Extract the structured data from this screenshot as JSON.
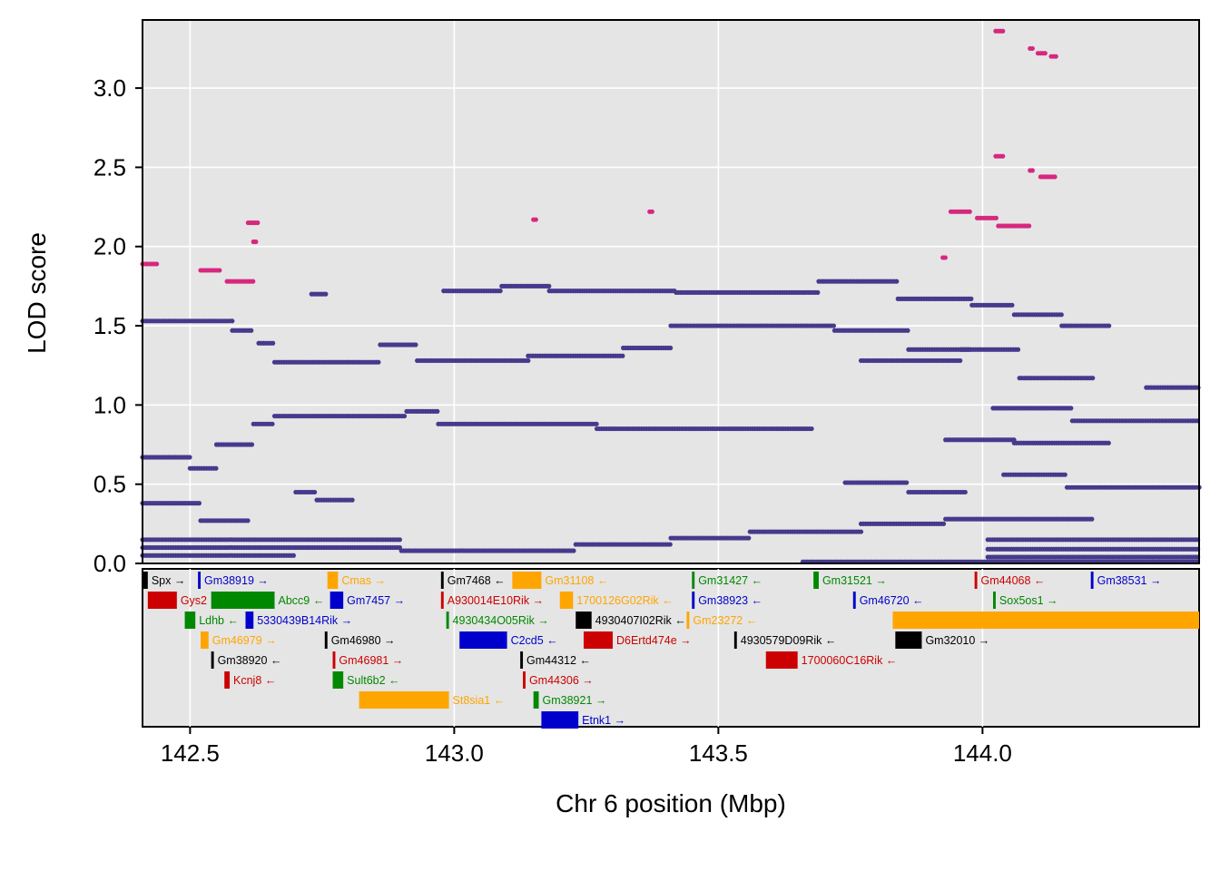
{
  "chart_data": {
    "type": "scatter",
    "xlabel": "Chr 6 position (Mbp)",
    "ylabel": "LOD score",
    "xlim": [
      142.41,
      144.41
    ],
    "ylim": [
      0,
      3.43
    ],
    "x_ticks": [
      142.5,
      143.0,
      143.5,
      144.0
    ],
    "x_tick_labels": [
      "142.5",
      "143.0",
      "143.5",
      "144.0"
    ],
    "y_ticks": [
      0,
      0.5,
      1.0,
      1.5,
      2.0,
      2.5,
      3.0
    ],
    "y_tick_labels": [
      "0.0",
      "0.5",
      "1.0",
      "1.5",
      "2.0",
      "2.5",
      "3.0"
    ],
    "grid": true,
    "colors": {
      "background": "#e5e5e5",
      "grid": "#ffffff",
      "points": "#453a8c",
      "highlight": "#d6287f"
    },
    "highlight_series": [
      {
        "x0": 142.41,
        "x1": 142.44,
        "y": 1.89
      },
      {
        "x0": 142.52,
        "x1": 142.56,
        "y": 1.85
      },
      {
        "x0": 142.57,
        "x1": 142.62,
        "y": 1.78
      },
      {
        "x0": 142.61,
        "x1": 142.63,
        "y": 2.15
      },
      {
        "x0": 142.62,
        "x1": 142.625,
        "y": 2.03
      },
      {
        "x0": 143.15,
        "x1": 143.155,
        "y": 2.17
      },
      {
        "x0": 143.37,
        "x1": 143.375,
        "y": 2.22
      },
      {
        "x0": 143.925,
        "x1": 143.93,
        "y": 1.93
      },
      {
        "x0": 143.94,
        "x1": 143.98,
        "y": 2.22
      },
      {
        "x0": 143.99,
        "x1": 144.03,
        "y": 2.18
      },
      {
        "x0": 144.03,
        "x1": 144.09,
        "y": 2.13
      },
      {
        "x0": 144.025,
        "x1": 144.04,
        "y": 2.57
      },
      {
        "x0": 144.025,
        "x1": 144.04,
        "y": 3.36
      },
      {
        "x0": 144.09,
        "x1": 144.095,
        "y": 3.25
      },
      {
        "x0": 144.105,
        "x1": 144.12,
        "y": 3.22
      },
      {
        "x0": 144.13,
        "x1": 144.14,
        "y": 3.2
      },
      {
        "x0": 144.09,
        "x1": 144.095,
        "y": 2.48
      },
      {
        "x0": 144.11,
        "x1": 144.14,
        "y": 2.44
      }
    ],
    "main_series": [
      {
        "x0": 142.41,
        "x1": 142.58,
        "y": 1.53
      },
      {
        "x0": 142.58,
        "x1": 142.62,
        "y": 1.47
      },
      {
        "x0": 142.63,
        "x1": 142.66,
        "y": 1.39
      },
      {
        "x0": 142.66,
        "x1": 142.86,
        "y": 1.27
      },
      {
        "x0": 142.86,
        "x1": 142.93,
        "y": 1.38
      },
      {
        "x0": 142.93,
        "x1": 143.14,
        "y": 1.28
      },
      {
        "x0": 143.14,
        "x1": 143.32,
        "y": 1.31
      },
      {
        "x0": 143.32,
        "x1": 143.41,
        "y": 1.36
      },
      {
        "x0": 143.41,
        "x1": 143.72,
        "y": 1.5
      },
      {
        "x0": 143.72,
        "x1": 143.86,
        "y": 1.47
      },
      {
        "x0": 143.86,
        "x1": 143.98,
        "y": 1.35
      },
      {
        "x0": 143.98,
        "x1": 144.06,
        "y": 1.63
      },
      {
        "x0": 144.06,
        "x1": 144.15,
        "y": 1.57
      },
      {
        "x0": 144.15,
        "x1": 144.24,
        "y": 1.5
      },
      {
        "x0": 142.73,
        "x1": 142.76,
        "y": 1.7
      },
      {
        "x0": 142.98,
        "x1": 143.09,
        "y": 1.72
      },
      {
        "x0": 143.09,
        "x1": 143.18,
        "y": 1.75
      },
      {
        "x0": 143.18,
        "x1": 143.42,
        "y": 1.72
      },
      {
        "x0": 143.42,
        "x1": 143.69,
        "y": 1.71
      },
      {
        "x0": 143.69,
        "x1": 143.84,
        "y": 1.78
      },
      {
        "x0": 143.84,
        "x1": 143.98,
        "y": 1.67
      },
      {
        "x0": 143.77,
        "x1": 143.96,
        "y": 1.28
      },
      {
        "x0": 143.96,
        "x1": 144.07,
        "y": 1.35
      },
      {
        "x0": 144.07,
        "x1": 144.21,
        "y": 1.17
      },
      {
        "x0": 144.31,
        "x1": 144.41,
        "y": 1.11
      },
      {
        "x0": 142.41,
        "x1": 142.5,
        "y": 0.67
      },
      {
        "x0": 142.5,
        "x1": 142.55,
        "y": 0.6
      },
      {
        "x0": 142.55,
        "x1": 142.62,
        "y": 0.75
      },
      {
        "x0": 142.62,
        "x1": 142.66,
        "y": 0.88
      },
      {
        "x0": 142.66,
        "x1": 142.91,
        "y": 0.93
      },
      {
        "x0": 142.91,
        "x1": 142.97,
        "y": 0.96
      },
      {
        "x0": 142.97,
        "x1": 143.27,
        "y": 0.88
      },
      {
        "x0": 143.27,
        "x1": 143.68,
        "y": 0.85
      },
      {
        "x0": 144.02,
        "x1": 144.17,
        "y": 0.98
      },
      {
        "x0": 144.17,
        "x1": 144.41,
        "y": 0.9
      },
      {
        "x0": 143.93,
        "x1": 144.06,
        "y": 0.78
      },
      {
        "x0": 144.06,
        "x1": 144.24,
        "y": 0.76
      },
      {
        "x0": 142.41,
        "x1": 142.52,
        "y": 0.38
      },
      {
        "x0": 142.52,
        "x1": 142.61,
        "y": 0.27
      },
      {
        "x0": 142.7,
        "x1": 142.74,
        "y": 0.45
      },
      {
        "x0": 142.74,
        "x1": 142.81,
        "y": 0.4
      },
      {
        "x0": 143.74,
        "x1": 143.86,
        "y": 0.51
      },
      {
        "x0": 143.86,
        "x1": 143.97,
        "y": 0.45
      },
      {
        "x0": 144.04,
        "x1": 144.16,
        "y": 0.56
      },
      {
        "x0": 144.16,
        "x1": 144.41,
        "y": 0.48
      },
      {
        "x0": 143.77,
        "x1": 143.93,
        "y": 0.25
      },
      {
        "x0": 143.93,
        "x1": 144.21,
        "y": 0.28
      },
      {
        "x0": 142.41,
        "x1": 142.9,
        "y": 0.15
      },
      {
        "x0": 142.41,
        "x1": 142.9,
        "y": 0.1
      },
      {
        "x0": 142.41,
        "x1": 142.7,
        "y": 0.05
      },
      {
        "x0": 142.9,
        "x1": 143.23,
        "y": 0.08
      },
      {
        "x0": 143.23,
        "x1": 143.41,
        "y": 0.12
      },
      {
        "x0": 143.41,
        "x1": 143.56,
        "y": 0.16
      },
      {
        "x0": 143.56,
        "x1": 143.77,
        "y": 0.2
      },
      {
        "x0": 144.01,
        "x1": 144.41,
        "y": 0.15
      },
      {
        "x0": 144.01,
        "x1": 144.41,
        "y": 0.09
      },
      {
        "x0": 144.01,
        "x1": 144.41,
        "y": 0.04
      },
      {
        "x0": 143.66,
        "x1": 144.41,
        "y": 0.01
      }
    ],
    "genes": [
      {
        "name": "Spx",
        "dir": "→",
        "start": 142.41,
        "end": 142.42,
        "row": 0,
        "color": "#000000"
      },
      {
        "name": "Gm38919",
        "dir": "→",
        "start": 142.515,
        "end": 142.52,
        "row": 0,
        "color": "#0000cc"
      },
      {
        "name": "Cmas",
        "dir": "→",
        "start": 142.76,
        "end": 142.78,
        "row": 0,
        "color": "#ffa500"
      },
      {
        "name": "Gm7468",
        "dir": "←",
        "start": 142.975,
        "end": 142.98,
        "row": 0,
        "color": "#000000"
      },
      {
        "name": "Gm31108",
        "dir": "←",
        "start": 143.11,
        "end": 143.165,
        "row": 0,
        "color": "#ffa500"
      },
      {
        "name": "Gm31427",
        "dir": "←",
        "start": 143.45,
        "end": 143.455,
        "row": 0,
        "color": "#008800"
      },
      {
        "name": "Gm31521",
        "dir": "→",
        "start": 143.68,
        "end": 143.69,
        "row": 0,
        "color": "#008800"
      },
      {
        "name": "Gm44068",
        "dir": "←",
        "start": 143.985,
        "end": 143.99,
        "row": 0,
        "color": "#cc0000"
      },
      {
        "name": "Gm38531",
        "dir": "→",
        "start": 144.205,
        "end": 144.21,
        "row": 0,
        "color": "#0000cc"
      },
      {
        "name": "Gys2",
        "dir": "←",
        "start": 142.42,
        "end": 142.475,
        "row": 1,
        "color": "#cc0000"
      },
      {
        "name": "Abcc9",
        "dir": "←",
        "start": 142.54,
        "end": 142.66,
        "row": 1,
        "color": "#008800"
      },
      {
        "name": "Gm7457",
        "dir": "→",
        "start": 142.765,
        "end": 142.79,
        "row": 1,
        "color": "#0000cc"
      },
      {
        "name": "A930014E10Rik",
        "dir": "→",
        "start": 142.975,
        "end": 142.98,
        "row": 1,
        "color": "#cc0000"
      },
      {
        "name": "1700126G02Rik",
        "dir": "←",
        "start": 143.2,
        "end": 143.225,
        "row": 1,
        "color": "#ffa500"
      },
      {
        "name": "Gm38923",
        "dir": "←",
        "start": 143.45,
        "end": 143.455,
        "row": 1,
        "color": "#0000cc"
      },
      {
        "name": "Gm46720",
        "dir": "←",
        "start": 143.755,
        "end": 143.76,
        "row": 1,
        "color": "#0000cc"
      },
      {
        "name": "Sox5os1",
        "dir": "→",
        "start": 144.02,
        "end": 144.025,
        "row": 1,
        "color": "#008800"
      },
      {
        "name": "Ldhb",
        "dir": "←",
        "start": 142.49,
        "end": 142.51,
        "row": 2,
        "color": "#008800"
      },
      {
        "name": "5330439B14Rik",
        "dir": "→",
        "start": 142.605,
        "end": 142.62,
        "row": 2,
        "color": "#0000cc"
      },
      {
        "name": "4930434O05Rik",
        "dir": "→",
        "start": 142.985,
        "end": 142.99,
        "row": 2,
        "color": "#008800"
      },
      {
        "name": "4930407I02Rik",
        "dir": "←",
        "start": 143.23,
        "end": 143.26,
        "row": 2,
        "color": "#000000"
      },
      {
        "name": "Gm23272",
        "dir": "←",
        "start": 143.44,
        "end": 143.445,
        "row": 2,
        "color": "#ffa500"
      },
      {
        "name": "",
        "dir": "",
        "start": 143.83,
        "end": 144.41,
        "row": 2,
        "color": "#ffa500"
      },
      {
        "name": "Gm46979",
        "dir": "→",
        "start": 142.52,
        "end": 142.535,
        "row": 3,
        "color": "#ffa500"
      },
      {
        "name": "Gm46980",
        "dir": "→",
        "start": 142.755,
        "end": 142.76,
        "row": 3,
        "color": "#000000"
      },
      {
        "name": "C2cd5",
        "dir": "←",
        "start": 143.01,
        "end": 143.1,
        "row": 3,
        "color": "#0000cc"
      },
      {
        "name": "D6Ertd474e",
        "dir": "→",
        "start": 143.245,
        "end": 143.3,
        "row": 3,
        "color": "#cc0000"
      },
      {
        "name": "4930579D09Rik",
        "dir": "←",
        "start": 143.53,
        "end": 143.535,
        "row": 3,
        "color": "#000000"
      },
      {
        "name": "Gm32010",
        "dir": "→",
        "start": 143.835,
        "end": 143.885,
        "row": 3,
        "color": "#000000"
      },
      {
        "name": "Gm38920",
        "dir": "←",
        "start": 142.54,
        "end": 142.545,
        "row": 4,
        "color": "#000000"
      },
      {
        "name": "Gm46981",
        "dir": "→",
        "start": 142.77,
        "end": 142.775,
        "row": 4,
        "color": "#cc0000"
      },
      {
        "name": "Gm44312",
        "dir": "←",
        "start": 143.125,
        "end": 143.13,
        "row": 4,
        "color": "#000000"
      },
      {
        "name": "1700060C16Rik",
        "dir": "←",
        "start": 143.59,
        "end": 143.65,
        "row": 4,
        "color": "#cc0000"
      },
      {
        "name": "Kcnj8",
        "dir": "←",
        "start": 142.565,
        "end": 142.575,
        "row": 5,
        "color": "#cc0000"
      },
      {
        "name": "Sult6b2",
        "dir": "←",
        "start": 142.77,
        "end": 142.79,
        "row": 5,
        "color": "#008800"
      },
      {
        "name": "Gm44306",
        "dir": "→",
        "start": 143.13,
        "end": 143.135,
        "row": 5,
        "color": "#cc0000"
      },
      {
        "name": "St8sia1",
        "dir": "←",
        "start": 142.82,
        "end": 142.99,
        "row": 6,
        "color": "#ffa500"
      },
      {
        "name": "Gm38921",
        "dir": "→",
        "start": 143.15,
        "end": 143.16,
        "row": 6,
        "color": "#008800"
      },
      {
        "name": "Etnk1",
        "dir": "→",
        "start": 143.165,
        "end": 143.235,
        "row": 7,
        "color": "#0000cc"
      }
    ]
  }
}
